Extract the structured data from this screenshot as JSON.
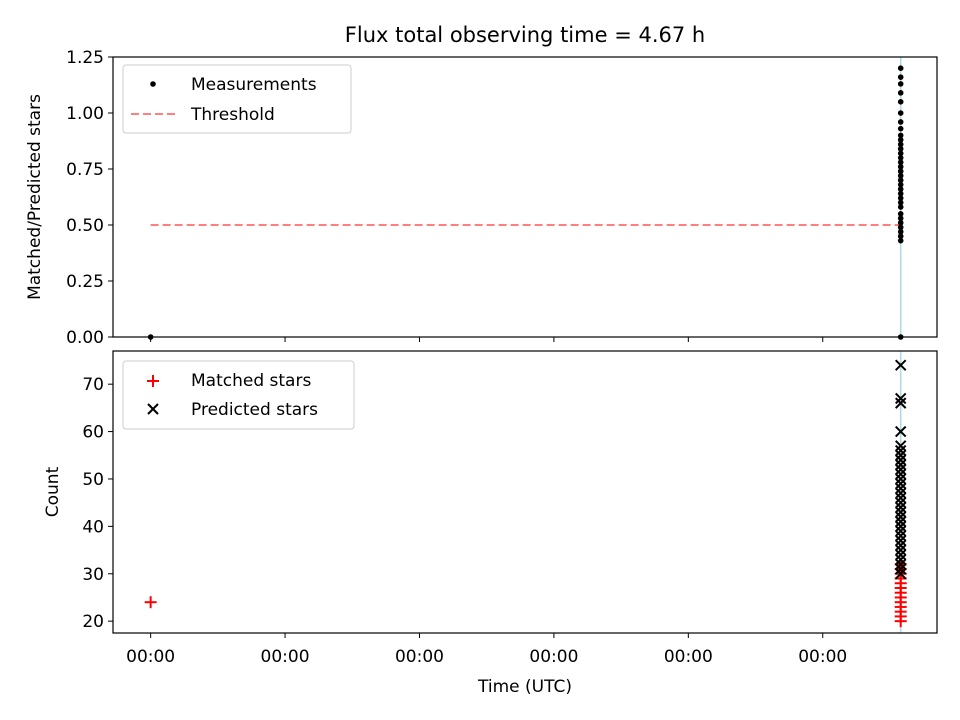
{
  "chart_data": [
    {
      "type": "scatter",
      "title": "Flux total observing time = 4.67 h",
      "ylabel": "Matched/Predicted stars",
      "xlabel": "",
      "xlim": [
        -0.28,
        5.85
      ],
      "ylim": [
        0,
        1.25
      ],
      "yticks": [
        0,
        0.25,
        0.5,
        0.75,
        1.0,
        1.25
      ],
      "ytick_labels": [
        "0.00",
        "0.25",
        "0.50",
        "0.75",
        "1.00",
        "1.25"
      ],
      "xticks": [
        0,
        1,
        2,
        3,
        4,
        5
      ],
      "xtick_labels": [
        "",
        "",
        "",
        "",
        "",
        ""
      ],
      "legend": {
        "placement": "upper-left",
        "entries": [
          {
            "label": "Measurements",
            "marker": "dot",
            "color": "#000000"
          },
          {
            "label": "Threshold",
            "marker": "dashed-line",
            "color": "#ff7f7f"
          }
        ]
      },
      "vertical_line": {
        "x": 5.58,
        "color": "#add8e6"
      },
      "threshold": {
        "x": [
          0,
          5.58
        ],
        "y": 0.5
      },
      "series": [
        {
          "name": "Measurements",
          "x": [
            0,
            5.58
          ],
          "points_x": [
            0
          ],
          "points_y": [
            0
          ],
          "cluster_x": 5.58,
          "cluster_y": [
            0,
            0.43,
            0.45,
            0.47,
            0.49,
            0.51,
            0.53,
            0.55,
            0.58,
            0.6,
            0.62,
            0.64,
            0.66,
            0.68,
            0.7,
            0.72,
            0.74,
            0.76,
            0.78,
            0.8,
            0.82,
            0.84,
            0.86,
            0.88,
            0.9,
            0.93,
            0.96,
            1.0,
            1.05,
            1.09,
            1.13,
            1.16,
            1.2
          ]
        }
      ]
    },
    {
      "type": "scatter",
      "title": "",
      "ylabel": "Count",
      "xlabel": "Time (UTC)",
      "xlim": [
        -0.28,
        5.85
      ],
      "ylim": [
        17.5,
        77
      ],
      "yticks": [
        20,
        30,
        40,
        50,
        60,
        70
      ],
      "ytick_labels": [
        "20",
        "30",
        "40",
        "50",
        "60",
        "70"
      ],
      "xticks": [
        0,
        1,
        2,
        3,
        4,
        5
      ],
      "xtick_labels": [
        "00:00",
        "00:00",
        "00:00",
        "00:00",
        "00:00",
        "00:00"
      ],
      "legend": {
        "placement": "upper-left",
        "entries": [
          {
            "label": "Matched stars",
            "marker": "plus",
            "color": "#ff0000"
          },
          {
            "label": "Predicted stars",
            "marker": "x",
            "color": "#000000"
          }
        ]
      },
      "vertical_line": {
        "x": 5.58,
        "color": "#add8e6"
      },
      "series": [
        {
          "name": "Matched stars",
          "points_x": [
            0
          ],
          "points_y": [
            24
          ],
          "cluster_x": 5.58,
          "cluster_y": [
            20,
            21,
            22,
            23,
            24,
            25,
            26,
            27,
            28,
            29,
            30,
            31,
            32
          ]
        },
        {
          "name": "Predicted stars",
          "points_x": [],
          "points_y": [],
          "cluster_x": 5.58,
          "cluster_y": [
            30,
            31,
            32,
            33,
            34,
            35,
            36,
            37,
            38,
            39,
            40,
            41,
            42,
            43,
            44,
            45,
            46,
            47,
            48,
            49,
            50,
            51,
            52,
            53,
            54,
            55,
            56,
            57,
            60,
            66,
            67,
            74
          ]
        }
      ]
    }
  ]
}
